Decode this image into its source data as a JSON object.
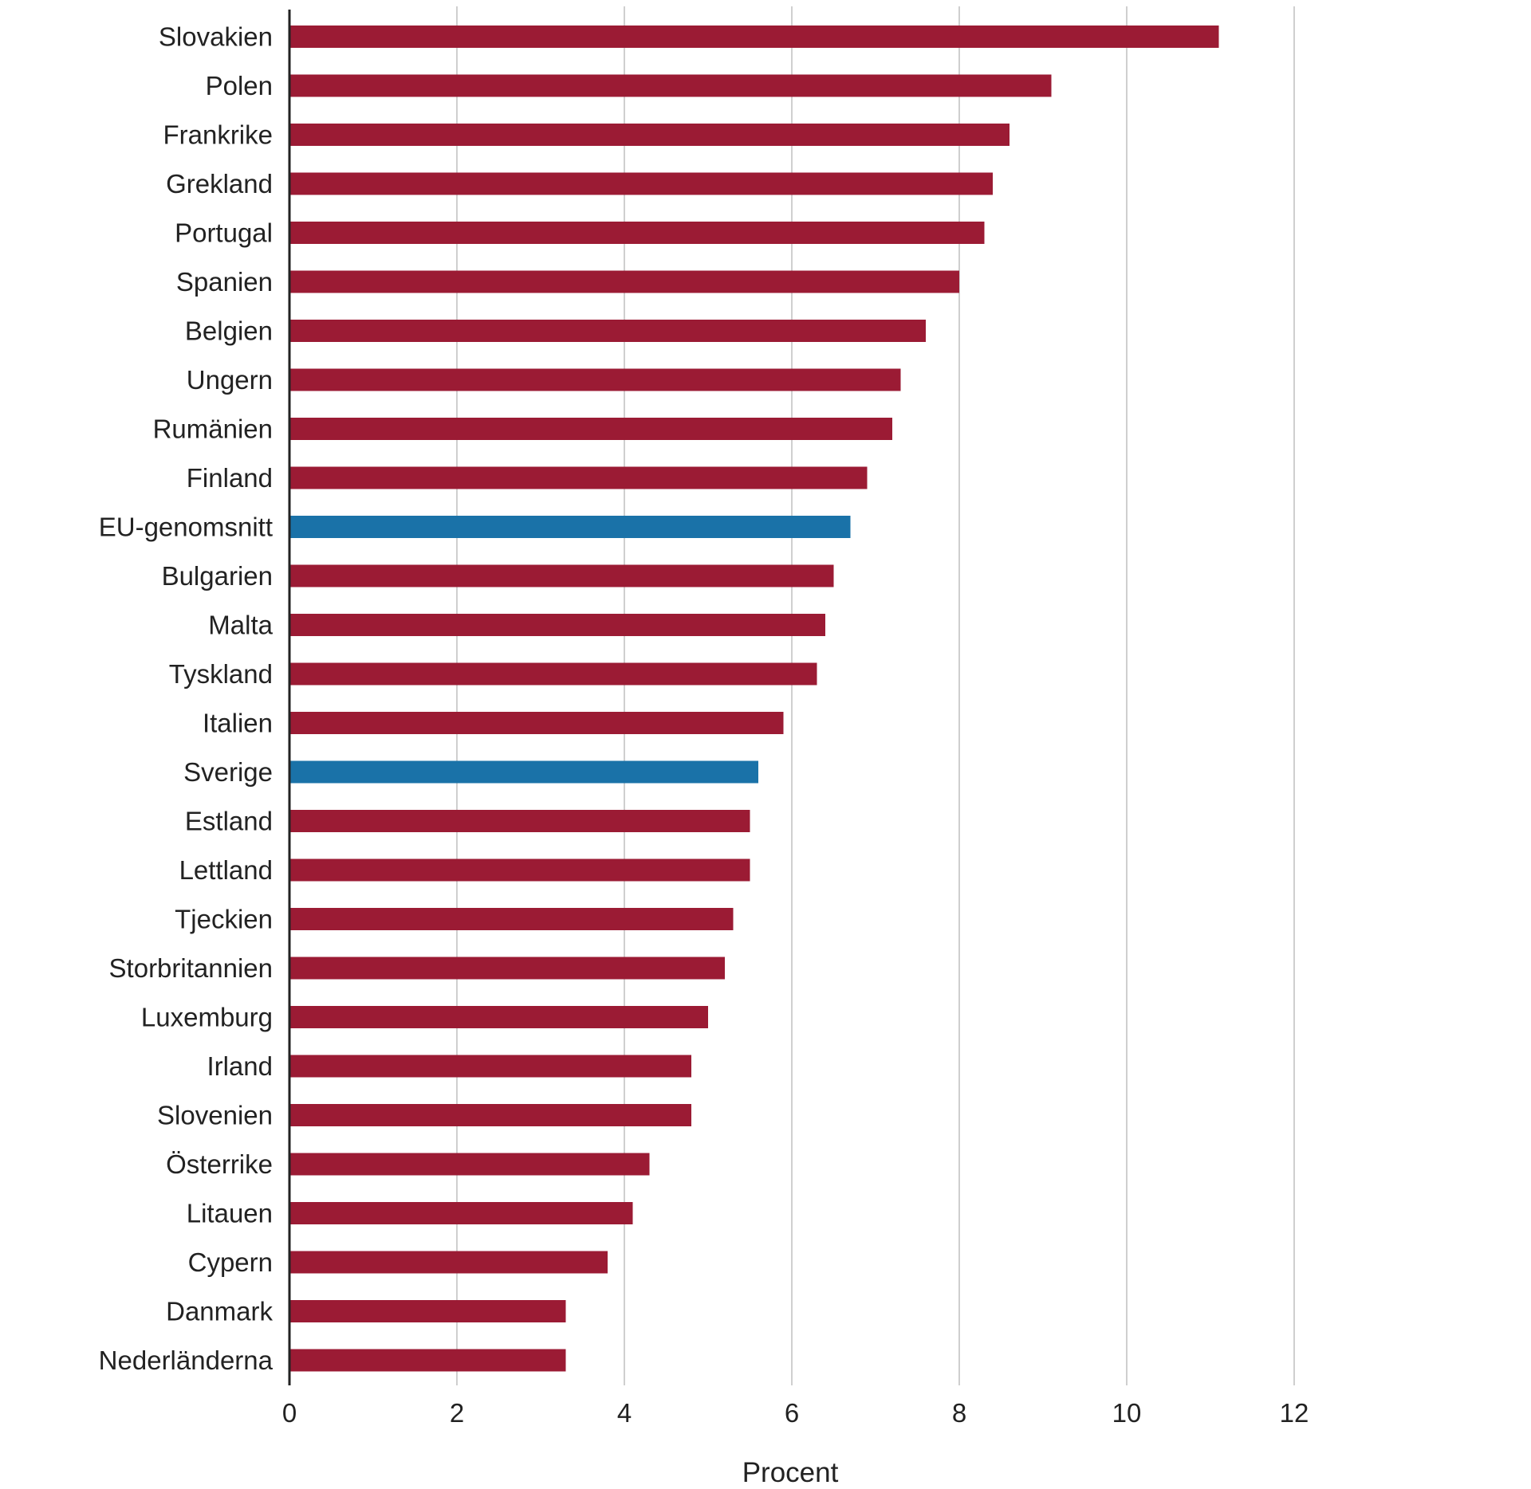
{
  "chart_data": {
    "type": "bar",
    "orientation": "horizontal",
    "title": "",
    "xlabel": "Procent",
    "ylabel": "",
    "xlim": [
      0,
      12
    ],
    "xticks": [
      0,
      2,
      4,
      6,
      8,
      10,
      12
    ],
    "grid": true,
    "colors": {
      "default": "#9b1b34",
      "highlight": "#1a72a8"
    },
    "highlighted": [
      "EU-genomsnitt",
      "Sverige"
    ],
    "categories": [
      "Slovakien",
      "Polen",
      "Frankrike",
      "Grekland",
      "Portugal",
      "Spanien",
      "Belgien",
      "Ungern",
      "Rumänien",
      "Finland",
      "EU-genomsnitt",
      "Bulgarien",
      "Malta",
      "Tyskland",
      "Italien",
      "Sverige",
      "Estland",
      "Lettland",
      "Tjeckien",
      "Storbritannien",
      "Luxemburg",
      "Irland",
      "Slovenien",
      "Österrike",
      "Litauen",
      "Cypern",
      "Danmark",
      "Nederländerna"
    ],
    "values": [
      11.1,
      9.1,
      8.6,
      8.4,
      8.3,
      8.0,
      7.6,
      7.3,
      7.2,
      6.9,
      6.7,
      6.5,
      6.4,
      6.3,
      5.9,
      5.6,
      5.5,
      5.5,
      5.3,
      5.2,
      5.0,
      4.8,
      4.8,
      4.3,
      4.1,
      3.8,
      3.3,
      3.3
    ]
  }
}
